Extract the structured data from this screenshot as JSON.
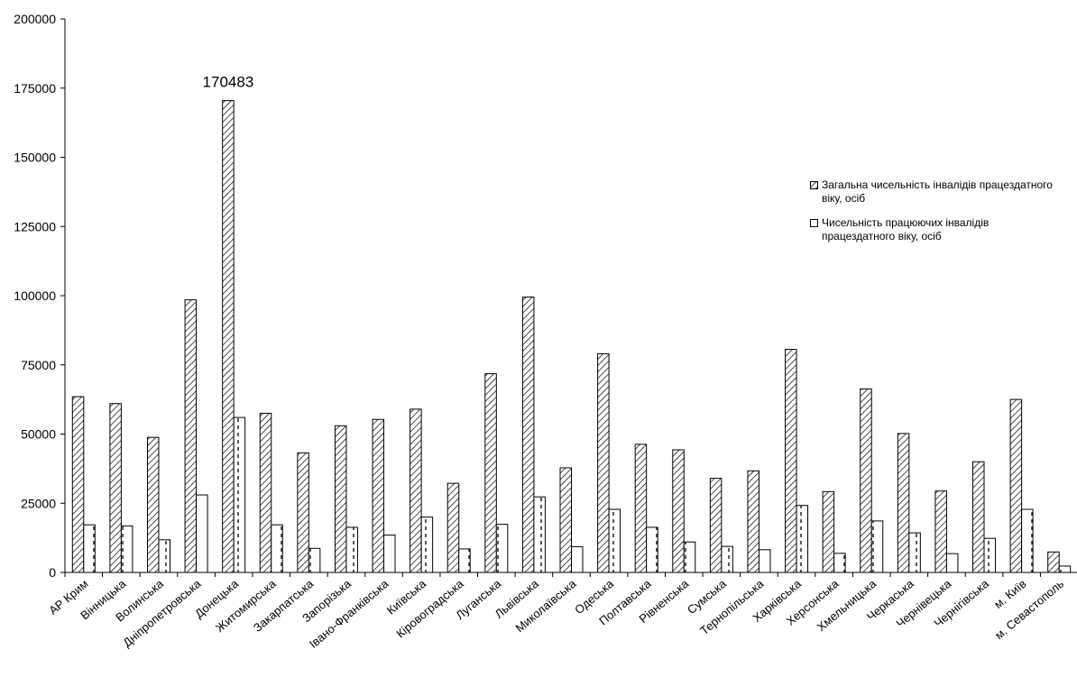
{
  "chart_data": {
    "type": "bar",
    "ylim": [
      0,
      200000
    ],
    "yticks": [
      0,
      25000,
      50000,
      75000,
      100000,
      125000,
      150000,
      175000,
      200000
    ],
    "categories": [
      "АР Крим",
      "Вінницька",
      "Волинська",
      "Дніпропетровська",
      "Донецька",
      "Житомирська",
      "Закарпатська",
      "Запорізька",
      "Івано-Франківська",
      "Київська",
      "Кіровоградська",
      "Луганська",
      "Львівська",
      "Миколаївська",
      "Одеська",
      "Полтавська",
      "Рівненська",
      "Сумська",
      "Тернопільська",
      "Харківська",
      "Херсонська",
      "Хмельницька",
      "Черкаська",
      "Чернівецька",
      "Чернігівська",
      "м. Київ",
      "м. Севастополь"
    ],
    "series": [
      {
        "name": "Загальна чисельність інвалідів працездатного віку, осіб",
        "pattern": "hatch",
        "values": [
          63500,
          61000,
          48800,
          98500,
          170483,
          57500,
          43200,
          53000,
          55300,
          59000,
          32200,
          71800,
          99500,
          37800,
          79000,
          46300,
          44300,
          34000,
          36700,
          80600,
          29200,
          66300,
          50200,
          29400,
          40000,
          62500,
          7400
        ]
      },
      {
        "name": "Чисельність працюючих інвалідів працездатного віку, осіб",
        "pattern": "dash",
        "values": [
          17200,
          16800,
          11800,
          28000,
          56000,
          17200,
          8700,
          16300,
          13500,
          20000,
          8500,
          17400,
          27300,
          9300,
          22800,
          16300,
          11000,
          9400,
          8200,
          24200,
          6900,
          18600,
          14300,
          6800,
          12300,
          22800,
          2300
        ]
      }
    ],
    "data_labels": [
      {
        "series": 0,
        "index": 4,
        "text": "170483"
      }
    ],
    "legend_position": "right",
    "grid": false
  }
}
